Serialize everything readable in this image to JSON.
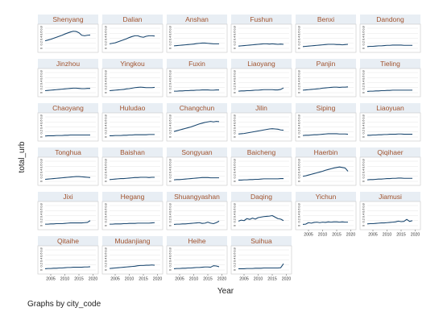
{
  "chart_data": {
    "type": "line",
    "layout": "small-multiples",
    "ylabel": "total_urb",
    "xlabel": "Year",
    "note": "Graphs by city_code",
    "xlim": [
      2003,
      2021
    ],
    "ylim": [
      0,
      0.8
    ],
    "x_ticks": [
      2005,
      2010,
      2015,
      2020
    ],
    "y_tick_labels": [
      "0",
      "0.2",
      "0.4",
      "0.6",
      "0.8"
    ],
    "grid": true,
    "colors": {
      "line": "#1a476f",
      "title": "#a0522d",
      "strip": "#e8eef4",
      "plot_bg": "#ffffff",
      "outer_bg": "#ffffff"
    },
    "x": [
      2003,
      2004,
      2005,
      2006,
      2007,
      2008,
      2009,
      2010,
      2011,
      2012,
      2013,
      2014,
      2015,
      2016,
      2017,
      2018,
      2019
    ],
    "series": [
      {
        "name": "Shenyang",
        "values": [
          0.3,
          0.33,
          0.36,
          0.4,
          0.44,
          0.48,
          0.52,
          0.57,
          0.61,
          0.65,
          0.68,
          0.67,
          0.62,
          0.52,
          0.5,
          0.52,
          0.53
        ]
      },
      {
        "name": "Dalian",
        "values": [
          0.18,
          0.2,
          0.22,
          0.26,
          0.3,
          0.34,
          0.38,
          0.43,
          0.47,
          0.5,
          0.5,
          0.46,
          0.44,
          0.48,
          0.5,
          0.5,
          0.49
        ]
      },
      {
        "name": "Anshan",
        "values": [
          0.1,
          0.11,
          0.12,
          0.13,
          0.14,
          0.15,
          0.16,
          0.17,
          0.19,
          0.2,
          0.21,
          0.21,
          0.2,
          0.19,
          0.18,
          0.18,
          0.18
        ]
      },
      {
        "name": "Fushun",
        "values": [
          0.09,
          0.1,
          0.11,
          0.12,
          0.13,
          0.14,
          0.15,
          0.16,
          0.17,
          0.18,
          0.18,
          0.17,
          0.18,
          0.17,
          0.16,
          0.17,
          0.16
        ]
      },
      {
        "name": "Benxi",
        "values": [
          0.07,
          0.08,
          0.09,
          0.1,
          0.11,
          0.12,
          0.13,
          0.14,
          0.15,
          0.16,
          0.16,
          0.16,
          0.15,
          0.15,
          0.14,
          0.15,
          0.16
        ]
      },
      {
        "name": "Dandong",
        "values": [
          0.07,
          0.08,
          0.08,
          0.09,
          0.1,
          0.1,
          0.11,
          0.12,
          0.12,
          0.13,
          0.13,
          0.13,
          0.13,
          0.12,
          0.12,
          0.12,
          0.12
        ]
      },
      {
        "name": "Jinzhou",
        "values": [
          0.08,
          0.09,
          0.1,
          0.11,
          0.12,
          0.13,
          0.14,
          0.15,
          0.16,
          0.17,
          0.18,
          0.18,
          0.17,
          0.16,
          0.16,
          0.17,
          0.17
        ]
      },
      {
        "name": "Yingkou",
        "values": [
          0.08,
          0.09,
          0.1,
          0.11,
          0.12,
          0.13,
          0.15,
          0.16,
          0.18,
          0.2,
          0.21,
          0.22,
          0.21,
          0.2,
          0.2,
          0.2,
          0.21
        ]
      },
      {
        "name": "Fuxin",
        "values": [
          0.06,
          0.06,
          0.07,
          0.07,
          0.08,
          0.08,
          0.09,
          0.09,
          0.1,
          0.1,
          0.11,
          0.11,
          0.11,
          0.1,
          0.1,
          0.11,
          0.11
        ]
      },
      {
        "name": "Liaoyang",
        "values": [
          0.06,
          0.07,
          0.07,
          0.08,
          0.08,
          0.09,
          0.1,
          0.1,
          0.11,
          0.12,
          0.12,
          0.12,
          0.12,
          0.11,
          0.11,
          0.13,
          0.19
        ]
      },
      {
        "name": "Panjin",
        "values": [
          0.1,
          0.11,
          0.12,
          0.13,
          0.14,
          0.15,
          0.16,
          0.18,
          0.19,
          0.2,
          0.21,
          0.22,
          0.22,
          0.21,
          0.22,
          0.22,
          0.23
        ]
      },
      {
        "name": "Tieling",
        "values": [
          0.05,
          0.06,
          0.06,
          0.07,
          0.07,
          0.08,
          0.08,
          0.09,
          0.09,
          0.1,
          0.1,
          0.1,
          0.1,
          0.1,
          0.1,
          0.1,
          0.1
        ]
      },
      {
        "name": "Chaoyang",
        "values": [
          0.04,
          0.05,
          0.05,
          0.05,
          0.06,
          0.06,
          0.06,
          0.07,
          0.07,
          0.08,
          0.08,
          0.08,
          0.08,
          0.08,
          0.08,
          0.08,
          0.08
        ]
      },
      {
        "name": "Huludao",
        "values": [
          0.05,
          0.05,
          0.06,
          0.06,
          0.06,
          0.07,
          0.07,
          0.08,
          0.08,
          0.09,
          0.09,
          0.09,
          0.09,
          0.09,
          0.1,
          0.1,
          0.1
        ]
      },
      {
        "name": "Changchun",
        "values": [
          0.22,
          0.25,
          0.28,
          0.31,
          0.34,
          0.37,
          0.4,
          0.44,
          0.48,
          0.52,
          0.55,
          0.58,
          0.6,
          0.62,
          0.6,
          0.62,
          0.61
        ]
      },
      {
        "name": "Jilin",
        "values": [
          0.12,
          0.13,
          0.14,
          0.16,
          0.18,
          0.2,
          0.22,
          0.24,
          0.26,
          0.28,
          0.3,
          0.32,
          0.33,
          0.32,
          0.31,
          0.28,
          0.27
        ]
      },
      {
        "name": "Siping",
        "values": [
          0.06,
          0.07,
          0.07,
          0.08,
          0.09,
          0.09,
          0.1,
          0.11,
          0.12,
          0.13,
          0.13,
          0.13,
          0.13,
          0.12,
          0.12,
          0.12,
          0.11
        ]
      },
      {
        "name": "Liaoyuan",
        "values": [
          0.07,
          0.07,
          0.08,
          0.08,
          0.09,
          0.09,
          0.1,
          0.1,
          0.11,
          0.11,
          0.11,
          0.12,
          0.12,
          0.11,
          0.11,
          0.11,
          0.11
        ]
      },
      {
        "name": "Tonghua",
        "values": [
          0.08,
          0.09,
          0.1,
          0.11,
          0.12,
          0.13,
          0.14,
          0.15,
          0.16,
          0.17,
          0.18,
          0.19,
          0.19,
          0.18,
          0.17,
          0.16,
          0.15
        ]
      },
      {
        "name": "Baishan",
        "values": [
          0.07,
          0.08,
          0.09,
          0.1,
          0.11,
          0.11,
          0.12,
          0.13,
          0.14,
          0.15,
          0.15,
          0.16,
          0.16,
          0.16,
          0.15,
          0.16,
          0.16
        ]
      },
      {
        "name": "Songyuan",
        "values": [
          0.06,
          0.07,
          0.07,
          0.08,
          0.09,
          0.1,
          0.11,
          0.12,
          0.13,
          0.14,
          0.15,
          0.15,
          0.15,
          0.14,
          0.14,
          0.14,
          0.14
        ]
      },
      {
        "name": "Baicheng",
        "values": [
          0.05,
          0.05,
          0.06,
          0.06,
          0.07,
          0.07,
          0.08,
          0.08,
          0.09,
          0.1,
          0.1,
          0.1,
          0.1,
          0.1,
          0.1,
          0.11,
          0.11
        ]
      },
      {
        "name": "Haerbin",
        "values": [
          0.2,
          0.22,
          0.25,
          0.28,
          0.31,
          0.34,
          0.37,
          0.4,
          0.44,
          0.47,
          0.5,
          0.53,
          0.55,
          0.57,
          0.55,
          0.53,
          0.4
        ]
      },
      {
        "name": "Qiqihaer",
        "values": [
          0.06,
          0.07,
          0.07,
          0.08,
          0.09,
          0.09,
          0.1,
          0.11,
          0.11,
          0.12,
          0.12,
          0.13,
          0.13,
          0.12,
          0.12,
          0.12,
          0.12
        ]
      },
      {
        "name": "Jixi",
        "values": [
          0.06,
          0.06,
          0.07,
          0.07,
          0.08,
          0.08,
          0.08,
          0.09,
          0.1,
          0.11,
          0.11,
          0.11,
          0.11,
          0.11,
          0.12,
          0.13,
          0.2
        ]
      },
      {
        "name": "Hegang",
        "values": [
          0.06,
          0.06,
          0.07,
          0.07,
          0.07,
          0.08,
          0.08,
          0.09,
          0.09,
          0.09,
          0.1,
          0.1,
          0.1,
          0.1,
          0.1,
          0.11,
          0.12
        ]
      },
      {
        "name": "Shuangyashan",
        "values": [
          0.05,
          0.06,
          0.06,
          0.07,
          0.07,
          0.08,
          0.09,
          0.1,
          0.11,
          0.12,
          0.09,
          0.1,
          0.14,
          0.1,
          0.08,
          0.12,
          0.18
        ]
      },
      {
        "name": "Daqing",
        "values": [
          0.18,
          0.22,
          0.2,
          0.28,
          0.25,
          0.3,
          0.26,
          0.32,
          0.34,
          0.36,
          0.37,
          0.38,
          0.4,
          0.34,
          0.28,
          0.26,
          0.2
        ]
      },
      {
        "name": "Yichun",
        "values": [
          0.05,
          0.06,
          0.12,
          0.1,
          0.13,
          0.14,
          0.12,
          0.14,
          0.13,
          0.15,
          0.14,
          0.15,
          0.15,
          0.14,
          0.15,
          0.14,
          0.14
        ]
      },
      {
        "name": "Jiamusi",
        "values": [
          0.07,
          0.08,
          0.08,
          0.09,
          0.1,
          0.11,
          0.11,
          0.12,
          0.13,
          0.14,
          0.15,
          0.18,
          0.16,
          0.17,
          0.25,
          0.17,
          0.2
        ]
      },
      {
        "name": "Qitaihe",
        "values": [
          0.05,
          0.06,
          0.06,
          0.07,
          0.07,
          0.08,
          0.08,
          0.09,
          0.1,
          0.1,
          0.11,
          0.11,
          0.11,
          0.11,
          0.12,
          0.12,
          0.13
        ]
      },
      {
        "name": "Mudanjiang",
        "values": [
          0.06,
          0.07,
          0.08,
          0.09,
          0.1,
          0.11,
          0.12,
          0.13,
          0.14,
          0.15,
          0.17,
          0.18,
          0.18,
          0.19,
          0.19,
          0.2,
          0.19
        ]
      },
      {
        "name": "Heihe",
        "values": [
          0.05,
          0.06,
          0.06,
          0.07,
          0.07,
          0.08,
          0.08,
          0.09,
          0.1,
          0.1,
          0.11,
          0.12,
          0.12,
          0.11,
          0.17,
          0.16,
          0.13
        ]
      },
      {
        "name": "Suihua",
        "values": [
          0.05,
          0.05,
          0.05,
          0.06,
          0.06,
          0.06,
          0.07,
          0.07,
          0.07,
          0.08,
          0.08,
          0.08,
          0.08,
          0.08,
          0.08,
          0.09,
          0.25
        ]
      }
    ]
  }
}
